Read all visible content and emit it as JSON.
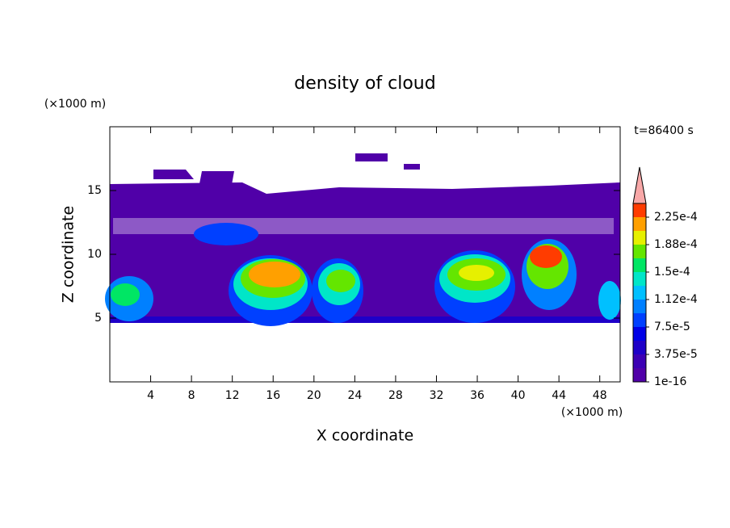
{
  "chart_data": {
    "type": "contour",
    "title": "density of cloud",
    "x_label": "X coordinate",
    "y_label": "Z coordinate",
    "x_unit": "(×1000 m)",
    "y_unit": "(×1000 m)",
    "time_label": "t=86400 s",
    "xlim": [
      0,
      50
    ],
    "xticks": [
      4,
      8,
      12,
      16,
      20,
      24,
      28,
      32,
      36,
      40,
      44,
      48
    ],
    "ylim": [
      0,
      20
    ],
    "yticks": [
      5,
      10,
      15
    ],
    "clim": [
      1e-16,
      0.00024375
    ],
    "cticks": [
      {
        "value": 1e-16,
        "label": "1e-16"
      },
      {
        "value": 3.75e-05,
        "label": "3.75e-5"
      },
      {
        "value": 7.5e-05,
        "label": "7.5e-5"
      },
      {
        "value": 0.0001125,
        "label": "1.12e-4"
      },
      {
        "value": 0.00015,
        "label": "1.5e-4"
      },
      {
        "value": 0.0001875,
        "label": "1.88e-4"
      },
      {
        "value": 0.000225,
        "label": "2.25e-4"
      }
    ],
    "colors": [
      "#5000a8",
      "#3c00b4",
      "#1e00c8",
      "#0000e6",
      "#0040ff",
      "#0080ff",
      "#00c0ff",
      "#00e6c8",
      "#00e664",
      "#64e600",
      "#e6f000",
      "#ffa000",
      "#ff3c00"
    ],
    "extend_color": "#f8a8a8"
  }
}
